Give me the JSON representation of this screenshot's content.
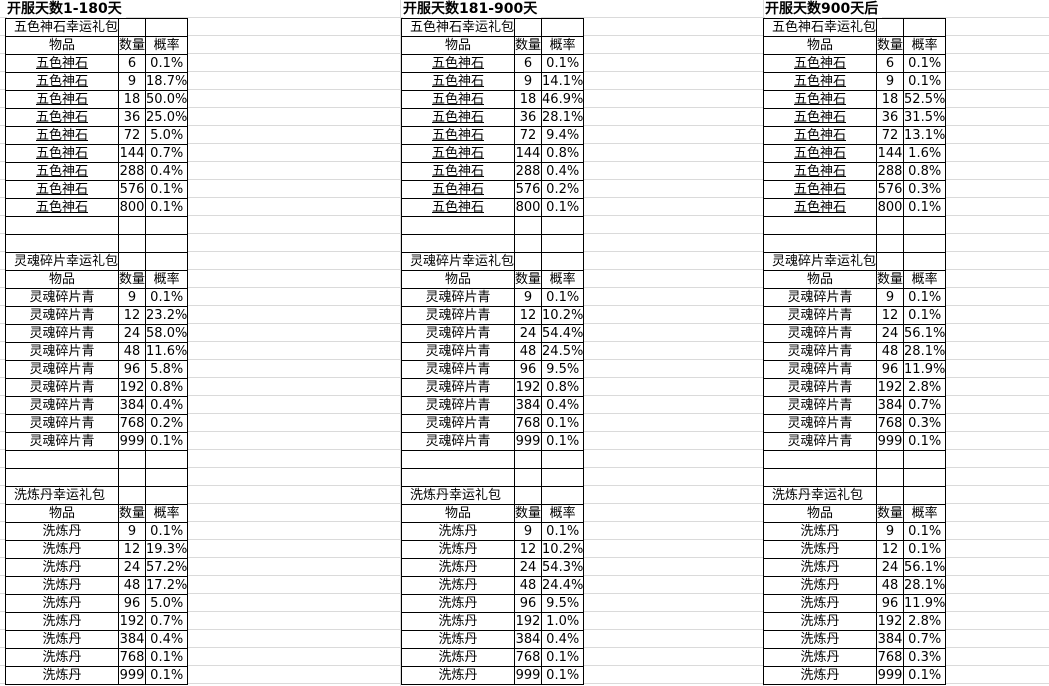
{
  "headers": [
    "物品",
    "数量",
    "概率"
  ],
  "panels": [
    {
      "title": "开服天数1-180天",
      "packs": [
        {
          "name": "五色神石幸运礼包",
          "rows": [
            [
              "五色神石",
              "6",
              "0.1%"
            ],
            [
              "五色神石",
              "9",
              "18.7%"
            ],
            [
              "五色神石",
              "18",
              "50.0%"
            ],
            [
              "五色神石",
              "36",
              "25.0%"
            ],
            [
              "五色神石",
              "72",
              "5.0%"
            ],
            [
              "五色神石",
              "144",
              "0.7%"
            ],
            [
              "五色神石",
              "288",
              "0.4%"
            ],
            [
              "五色神石",
              "576",
              "0.1%"
            ],
            [
              "五色神石",
              "800",
              "0.1%"
            ]
          ]
        },
        {
          "name": "灵魂碎片幸运礼包",
          "rows": [
            [
              "灵魂碎片青",
              "9",
              "0.1%"
            ],
            [
              "灵魂碎片青",
              "12",
              "23.2%"
            ],
            [
              "灵魂碎片青",
              "24",
              "58.0%"
            ],
            [
              "灵魂碎片青",
              "48",
              "11.6%"
            ],
            [
              "灵魂碎片青",
              "96",
              "5.8%"
            ],
            [
              "灵魂碎片青",
              "192",
              "0.8%"
            ],
            [
              "灵魂碎片青",
              "384",
              "0.4%"
            ],
            [
              "灵魂碎片青",
              "768",
              "0.2%"
            ],
            [
              "灵魂碎片青",
              "999",
              "0.1%"
            ]
          ]
        },
        {
          "name": "洗炼丹幸运礼包",
          "rows": [
            [
              "洗炼丹",
              "9",
              "0.1%"
            ],
            [
              "洗炼丹",
              "12",
              "19.3%"
            ],
            [
              "洗炼丹",
              "24",
              "57.2%"
            ],
            [
              "洗炼丹",
              "48",
              "17.2%"
            ],
            [
              "洗炼丹",
              "96",
              "5.0%"
            ],
            [
              "洗炼丹",
              "192",
              "0.7%"
            ],
            [
              "洗炼丹",
              "384",
              "0.4%"
            ],
            [
              "洗炼丹",
              "768",
              "0.1%"
            ],
            [
              "洗炼丹",
              "999",
              "0.1%"
            ]
          ]
        }
      ]
    },
    {
      "title": "开服天数181-900天",
      "packs": [
        {
          "name": "五色神石幸运礼包",
          "rows": [
            [
              "五色神石",
              "6",
              "0.1%"
            ],
            [
              "五色神石",
              "9",
              "14.1%"
            ],
            [
              "五色神石",
              "18",
              "46.9%"
            ],
            [
              "五色神石",
              "36",
              "28.1%"
            ],
            [
              "五色神石",
              "72",
              "9.4%"
            ],
            [
              "五色神石",
              "144",
              "0.8%"
            ],
            [
              "五色神石",
              "288",
              "0.4%"
            ],
            [
              "五色神石",
              "576",
              "0.2%"
            ],
            [
              "五色神石",
              "800",
              "0.1%"
            ]
          ]
        },
        {
          "name": "灵魂碎片幸运礼包",
          "rows": [
            [
              "灵魂碎片青",
              "9",
              "0.1%"
            ],
            [
              "灵魂碎片青",
              "12",
              "10.2%"
            ],
            [
              "灵魂碎片青",
              "24",
              "54.4%"
            ],
            [
              "灵魂碎片青",
              "48",
              "24.5%"
            ],
            [
              "灵魂碎片青",
              "96",
              "9.5%"
            ],
            [
              "灵魂碎片青",
              "192",
              "0.8%"
            ],
            [
              "灵魂碎片青",
              "384",
              "0.4%"
            ],
            [
              "灵魂碎片青",
              "768",
              "0.1%"
            ],
            [
              "灵魂碎片青",
              "999",
              "0.1%"
            ]
          ]
        },
        {
          "name": "洗炼丹幸运礼包",
          "rows": [
            [
              "洗炼丹",
              "9",
              "0.1%"
            ],
            [
              "洗炼丹",
              "12",
              "10.2%"
            ],
            [
              "洗炼丹",
              "24",
              "54.3%"
            ],
            [
              "洗炼丹",
              "48",
              "24.4%"
            ],
            [
              "洗炼丹",
              "96",
              "9.5%"
            ],
            [
              "洗炼丹",
              "192",
              "1.0%"
            ],
            [
              "洗炼丹",
              "384",
              "0.4%"
            ],
            [
              "洗炼丹",
              "768",
              "0.1%"
            ],
            [
              "洗炼丹",
              "999",
              "0.1%"
            ]
          ]
        }
      ]
    },
    {
      "title": "开服天数900天后",
      "packs": [
        {
          "name": "五色神石幸运礼包",
          "rows": [
            [
              "五色神石",
              "6",
              "0.1%"
            ],
            [
              "五色神石",
              "9",
              "0.1%"
            ],
            [
              "五色神石",
              "18",
              "52.5%"
            ],
            [
              "五色神石",
              "36",
              "31.5%"
            ],
            [
              "五色神石",
              "72",
              "13.1%"
            ],
            [
              "五色神石",
              "144",
              "1.6%"
            ],
            [
              "五色神石",
              "288",
              "0.8%"
            ],
            [
              "五色神石",
              "576",
              "0.3%"
            ],
            [
              "五色神石",
              "800",
              "0.1%"
            ]
          ]
        },
        {
          "name": "灵魂碎片幸运礼包",
          "rows": [
            [
              "灵魂碎片青",
              "9",
              "0.1%"
            ],
            [
              "灵魂碎片青",
              "12",
              "0.1%"
            ],
            [
              "灵魂碎片青",
              "24",
              "56.1%"
            ],
            [
              "灵魂碎片青",
              "48",
              "28.1%"
            ],
            [
              "灵魂碎片青",
              "96",
              "11.9%"
            ],
            [
              "灵魂碎片青",
              "192",
              "2.8%"
            ],
            [
              "灵魂碎片青",
              "384",
              "0.7%"
            ],
            [
              "灵魂碎片青",
              "768",
              "0.3%"
            ],
            [
              "灵魂碎片青",
              "999",
              "0.1%"
            ]
          ]
        },
        {
          "name": "洗炼丹幸运礼包",
          "rows": [
            [
              "洗炼丹",
              "9",
              "0.1%"
            ],
            [
              "洗炼丹",
              "12",
              "0.1%"
            ],
            [
              "洗炼丹",
              "24",
              "56.1%"
            ],
            [
              "洗炼丹",
              "48",
              "28.1%"
            ],
            [
              "洗炼丹",
              "96",
              "11.9%"
            ],
            [
              "洗炼丹",
              "192",
              "2.8%"
            ],
            [
              "洗炼丹",
              "384",
              "0.7%"
            ],
            [
              "洗炼丹",
              "768",
              "0.3%"
            ],
            [
              "洗炼丹",
              "999",
              "0.1%"
            ]
          ]
        }
      ]
    }
  ]
}
